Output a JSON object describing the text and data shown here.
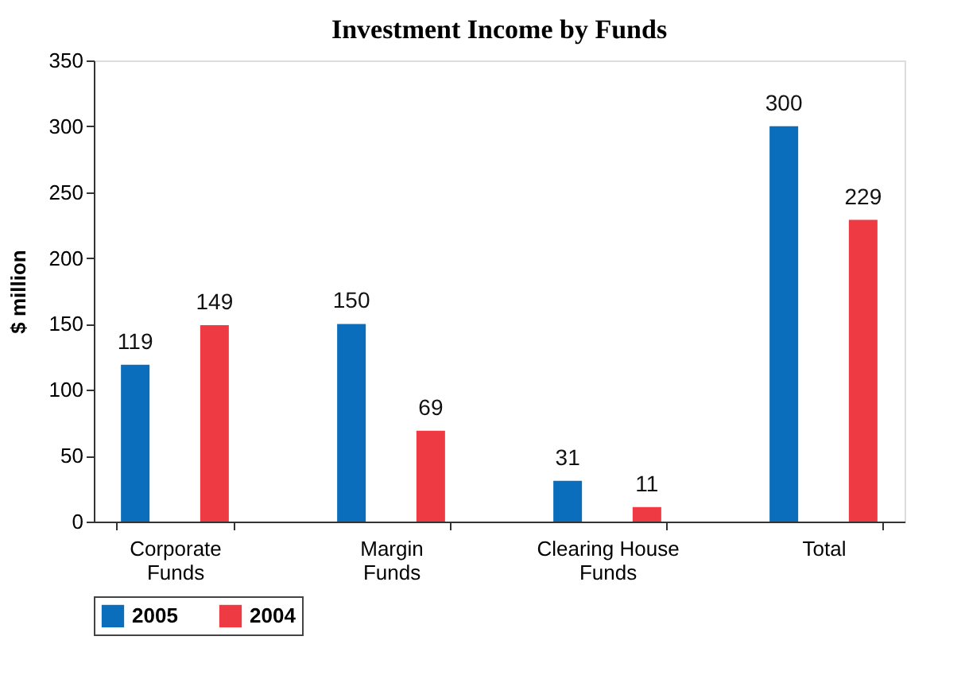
{
  "chart_data": {
    "type": "bar",
    "title": "Investment Income by Funds",
    "ylabel": "$ million",
    "categories": [
      "Corporate Funds",
      "Margin Funds",
      "Clearing House Funds",
      "Total"
    ],
    "series": [
      {
        "name": "2005",
        "color": "#0a6ebd",
        "values": [
          119,
          150,
          31,
          300
        ]
      },
      {
        "name": "2004",
        "color": "#ee3a43",
        "values": [
          149,
          69,
          11,
          229
        ]
      }
    ],
    "ylim": [
      0,
      350
    ],
    "yticks": [
      0,
      50,
      100,
      150,
      200,
      250,
      300,
      350
    ],
    "data_labels": true,
    "grid": false,
    "legend": "bottom"
  }
}
